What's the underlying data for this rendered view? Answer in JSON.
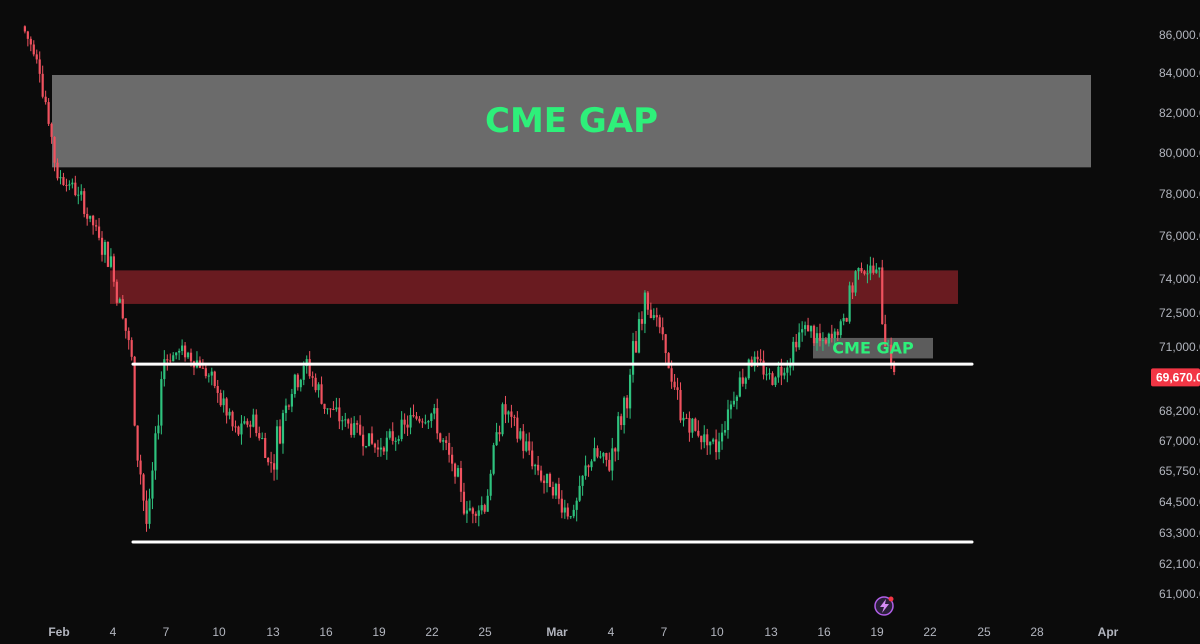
{
  "chart_data": {
    "type": "candlestick",
    "title": "",
    "xlabel": "",
    "ylabel": "",
    "ylim": [
      60200,
      88500
    ],
    "x_tick_labels": [
      "Feb",
      "4",
      "7",
      "10",
      "13",
      "16",
      "19",
      "22",
      "25",
      "Mar",
      "4",
      "7",
      "10",
      "13",
      "16",
      "19",
      "22",
      "25",
      "28",
      "Apr"
    ],
    "y_tick_labels": [
      "86,000.0",
      "84,000.0",
      "82,000.0",
      "80,000.0",
      "78,000.0",
      "76,000.0",
      "74,000.0",
      "72,500.0",
      "71,000.0",
      "68,200.0",
      "67,000.0",
      "65,750.0",
      "64,500.0",
      "63,300.0",
      "62,100.0",
      "61,000.0"
    ],
    "last_price_label": "69,670.0",
    "zones": [
      {
        "label": "CME GAP",
        "low": 79300,
        "high": 83900,
        "color": "#6b6b6b"
      },
      {
        "label": "",
        "low": 72900,
        "high": 74400,
        "color": "#7a1f24"
      },
      {
        "label": "CME GAP",
        "low": 70500,
        "high": 71400,
        "color": "#5c5c5c"
      }
    ],
    "horizontal_lines": [
      {
        "price": 70250,
        "color": "#ffffff"
      },
      {
        "price": 62950,
        "color": "#ffffff"
      }
    ],
    "candles": [
      {
        "t": "Jan 30",
        "c": 86500
      },
      {
        "t": "Jan 31",
        "c": 84500
      },
      {
        "t": "Feb 1",
        "c": 79000
      },
      {
        "t": "Feb 2",
        "c": 78200
      },
      {
        "t": "Feb 3",
        "c": 76500
      },
      {
        "t": "Feb 4",
        "c": 74800
      },
      {
        "t": "Feb 5",
        "c": 71200
      },
      {
        "t": "Feb 6",
        "c": 63200
      },
      {
        "t": "Feb 7",
        "c": 70500
      },
      {
        "t": "Feb 8",
        "c": 70800
      },
      {
        "t": "Feb 9",
        "c": 70300
      },
      {
        "t": "Feb 10",
        "c": 69000
      },
      {
        "t": "Feb 11",
        "c": 67200
      },
      {
        "t": "Feb 12",
        "c": 67900
      },
      {
        "t": "Feb 13",
        "c": 66000
      },
      {
        "t": "Feb 14",
        "c": 69100
      },
      {
        "t": "Feb 15",
        "c": 70200
      },
      {
        "t": "Feb 16",
        "c": 68500
      },
      {
        "t": "Feb 17",
        "c": 67800
      },
      {
        "t": "Feb 18",
        "c": 67300
      },
      {
        "t": "Feb 19",
        "c": 66700
      },
      {
        "t": "Feb 20",
        "c": 67200
      },
      {
        "t": "Feb 21",
        "c": 67900
      },
      {
        "t": "Feb 22",
        "c": 68100
      },
      {
        "t": "Feb 23",
        "c": 66200
      },
      {
        "t": "Feb 24",
        "c": 64200
      },
      {
        "t": "Feb 25",
        "c": 64400
      },
      {
        "t": "Feb 26",
        "c": 68300
      },
      {
        "t": "Feb 27",
        "c": 67200
      },
      {
        "t": "Feb 28",
        "c": 65600
      },
      {
        "t": "Mar 1",
        "c": 64000
      },
      {
        "t": "Mar 2",
        "c": 66500
      },
      {
        "t": "Mar 3",
        "c": 66000
      },
      {
        "t": "Mar 4",
        "c": 68800
      },
      {
        "t": "Mar 5",
        "c": 73600
      },
      {
        "t": "Mar 6",
        "c": 71200
      },
      {
        "t": "Mar 7",
        "c": 68100
      },
      {
        "t": "Mar 8",
        "c": 67300
      },
      {
        "t": "Mar 9",
        "c": 66700
      },
      {
        "t": "Mar 10",
        "c": 68900
      },
      {
        "t": "Mar 11",
        "c": 70600
      },
      {
        "t": "Mar 12",
        "c": 69600
      },
      {
        "t": "Mar 13",
        "c": 70300
      },
      {
        "t": "Mar 14",
        "c": 72000
      },
      {
        "t": "Mar 15",
        "c": 71000
      },
      {
        "t": "Mar 16",
        "c": 71900
      },
      {
        "t": "Mar 17",
        "c": 74600
      },
      {
        "t": "Mar 18",
        "c": 74300
      },
      {
        "t": "Mar 19",
        "c": 69670
      }
    ],
    "grid": false,
    "legend": "none"
  },
  "icons": {
    "bolt": "lightning-bolt-icon"
  }
}
